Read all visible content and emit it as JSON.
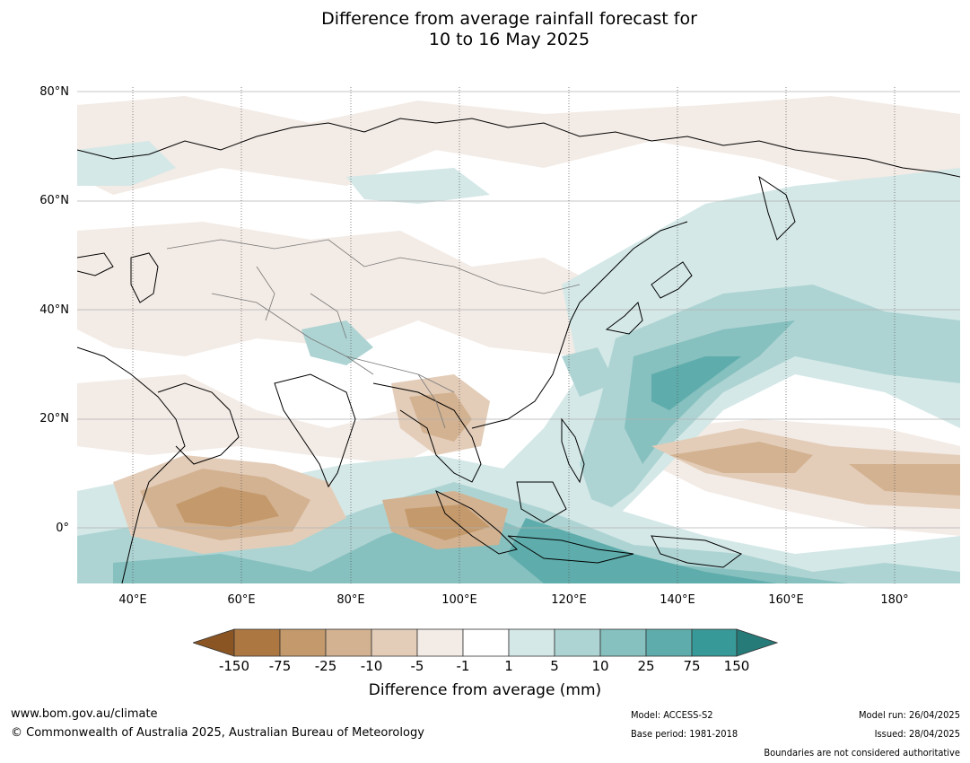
{
  "title_line1": "Difference from average rainfall forecast for",
  "title_line2": "10 to 16 May 2025",
  "lat_labels": [
    "80°N",
    "60°N",
    "40°N",
    "20°N",
    "0°"
  ],
  "lon_labels": [
    "40°E",
    "60°E",
    "80°E",
    "100°E",
    "120°E",
    "140°E",
    "160°E",
    "180°"
  ],
  "colorbar": {
    "ticks": [
      "-150",
      "-75",
      "-25",
      "-10",
      "-5",
      "-1",
      "1",
      "5",
      "10",
      "25",
      "75",
      "150"
    ],
    "colors": {
      "below_min": "#8a5522",
      "b1": "#ad7741",
      "b2": "#c4996b",
      "b3": "#d3b291",
      "b4": "#e3cdb9",
      "b5": "#f3ebe5",
      "b6": "#ffffff",
      "b7": "#d4e8e7",
      "b8": "#add4d3",
      "b9": "#86c0bf",
      "b10": "#5eadac",
      "b11": "#379a98",
      "above_max": "#267a78"
    },
    "label": "Difference from average (mm)"
  },
  "footer": {
    "website": "www.bom.gov.au/climate",
    "copyright": "© Commonwealth of Australia 2025, Australian Bureau of Meteorology",
    "model": "Model: ACCESS-S2",
    "base_period": "Base period: 1981-2018",
    "model_run": "Model run: 26/04/2025",
    "issued": "Issued: 28/04/2025",
    "boundaries_note": "Boundaries are not considered authoritative"
  }
}
